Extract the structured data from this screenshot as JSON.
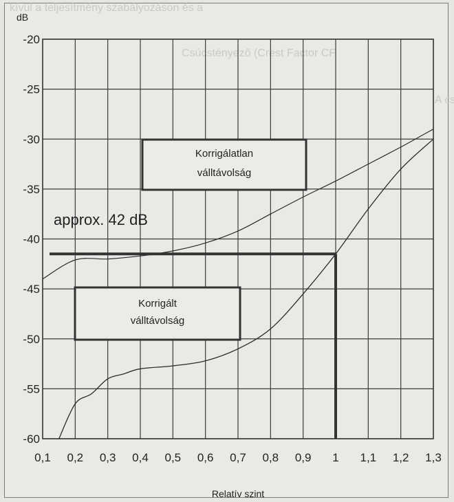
{
  "background_text": [
    "kívül a teljesítmény szabályozáson és a",
    "Csúcstényező (Crest Factor CF",
    "A csúcstényező"
  ],
  "chart_data": {
    "type": "line",
    "unit_label": "dB",
    "xlabel": "Relatív szint",
    "xlim": [
      0.1,
      1.3
    ],
    "ylim": [
      -60,
      -20
    ],
    "x_ticks": [
      "0,1",
      "0,2",
      "0,3",
      "0,4",
      "0,5",
      "0,6",
      "0,7",
      "0,8",
      "0,9",
      "1",
      "1,1",
      "1,2",
      "1,3"
    ],
    "y_ticks": [
      "-20",
      "-25",
      "-30",
      "-35",
      "-40",
      "-45",
      "-50",
      "-55",
      "-60"
    ],
    "grid": true,
    "series": [
      {
        "name": "Korrigálatlan válltávolság",
        "x": [
          0.1,
          0.2,
          0.3,
          0.4,
          0.5,
          0.6,
          0.7,
          0.8,
          0.9,
          1.0,
          1.1,
          1.2,
          1.3
        ],
        "y": [
          -44,
          -42.1,
          -42,
          -41.7,
          -41.2,
          -40.4,
          -39.2,
          -37.5,
          -35.8,
          -34.2,
          -32.5,
          -30.8,
          -29
        ]
      },
      {
        "name": "Korrigált válltávolság",
        "x": [
          0.15,
          0.2,
          0.25,
          0.3,
          0.35,
          0.4,
          0.5,
          0.6,
          0.7,
          0.8,
          0.9,
          1.0,
          1.1,
          1.2,
          1.3
        ],
        "y": [
          -60,
          -56.5,
          -55.5,
          -54,
          -53.5,
          -53,
          -52.7,
          -52.2,
          -51,
          -49,
          -45.5,
          -41.5,
          -37,
          -33,
          -30
        ]
      }
    ],
    "annotations": {
      "level_text": "approx. 42 dB",
      "level_value": -41.5,
      "level_x_end": 1.0,
      "box_uncorrected": [
        "Korrigálatlan",
        "válltávolság"
      ],
      "box_corrected": [
        "Korrigált",
        "válltávolság"
      ]
    }
  }
}
